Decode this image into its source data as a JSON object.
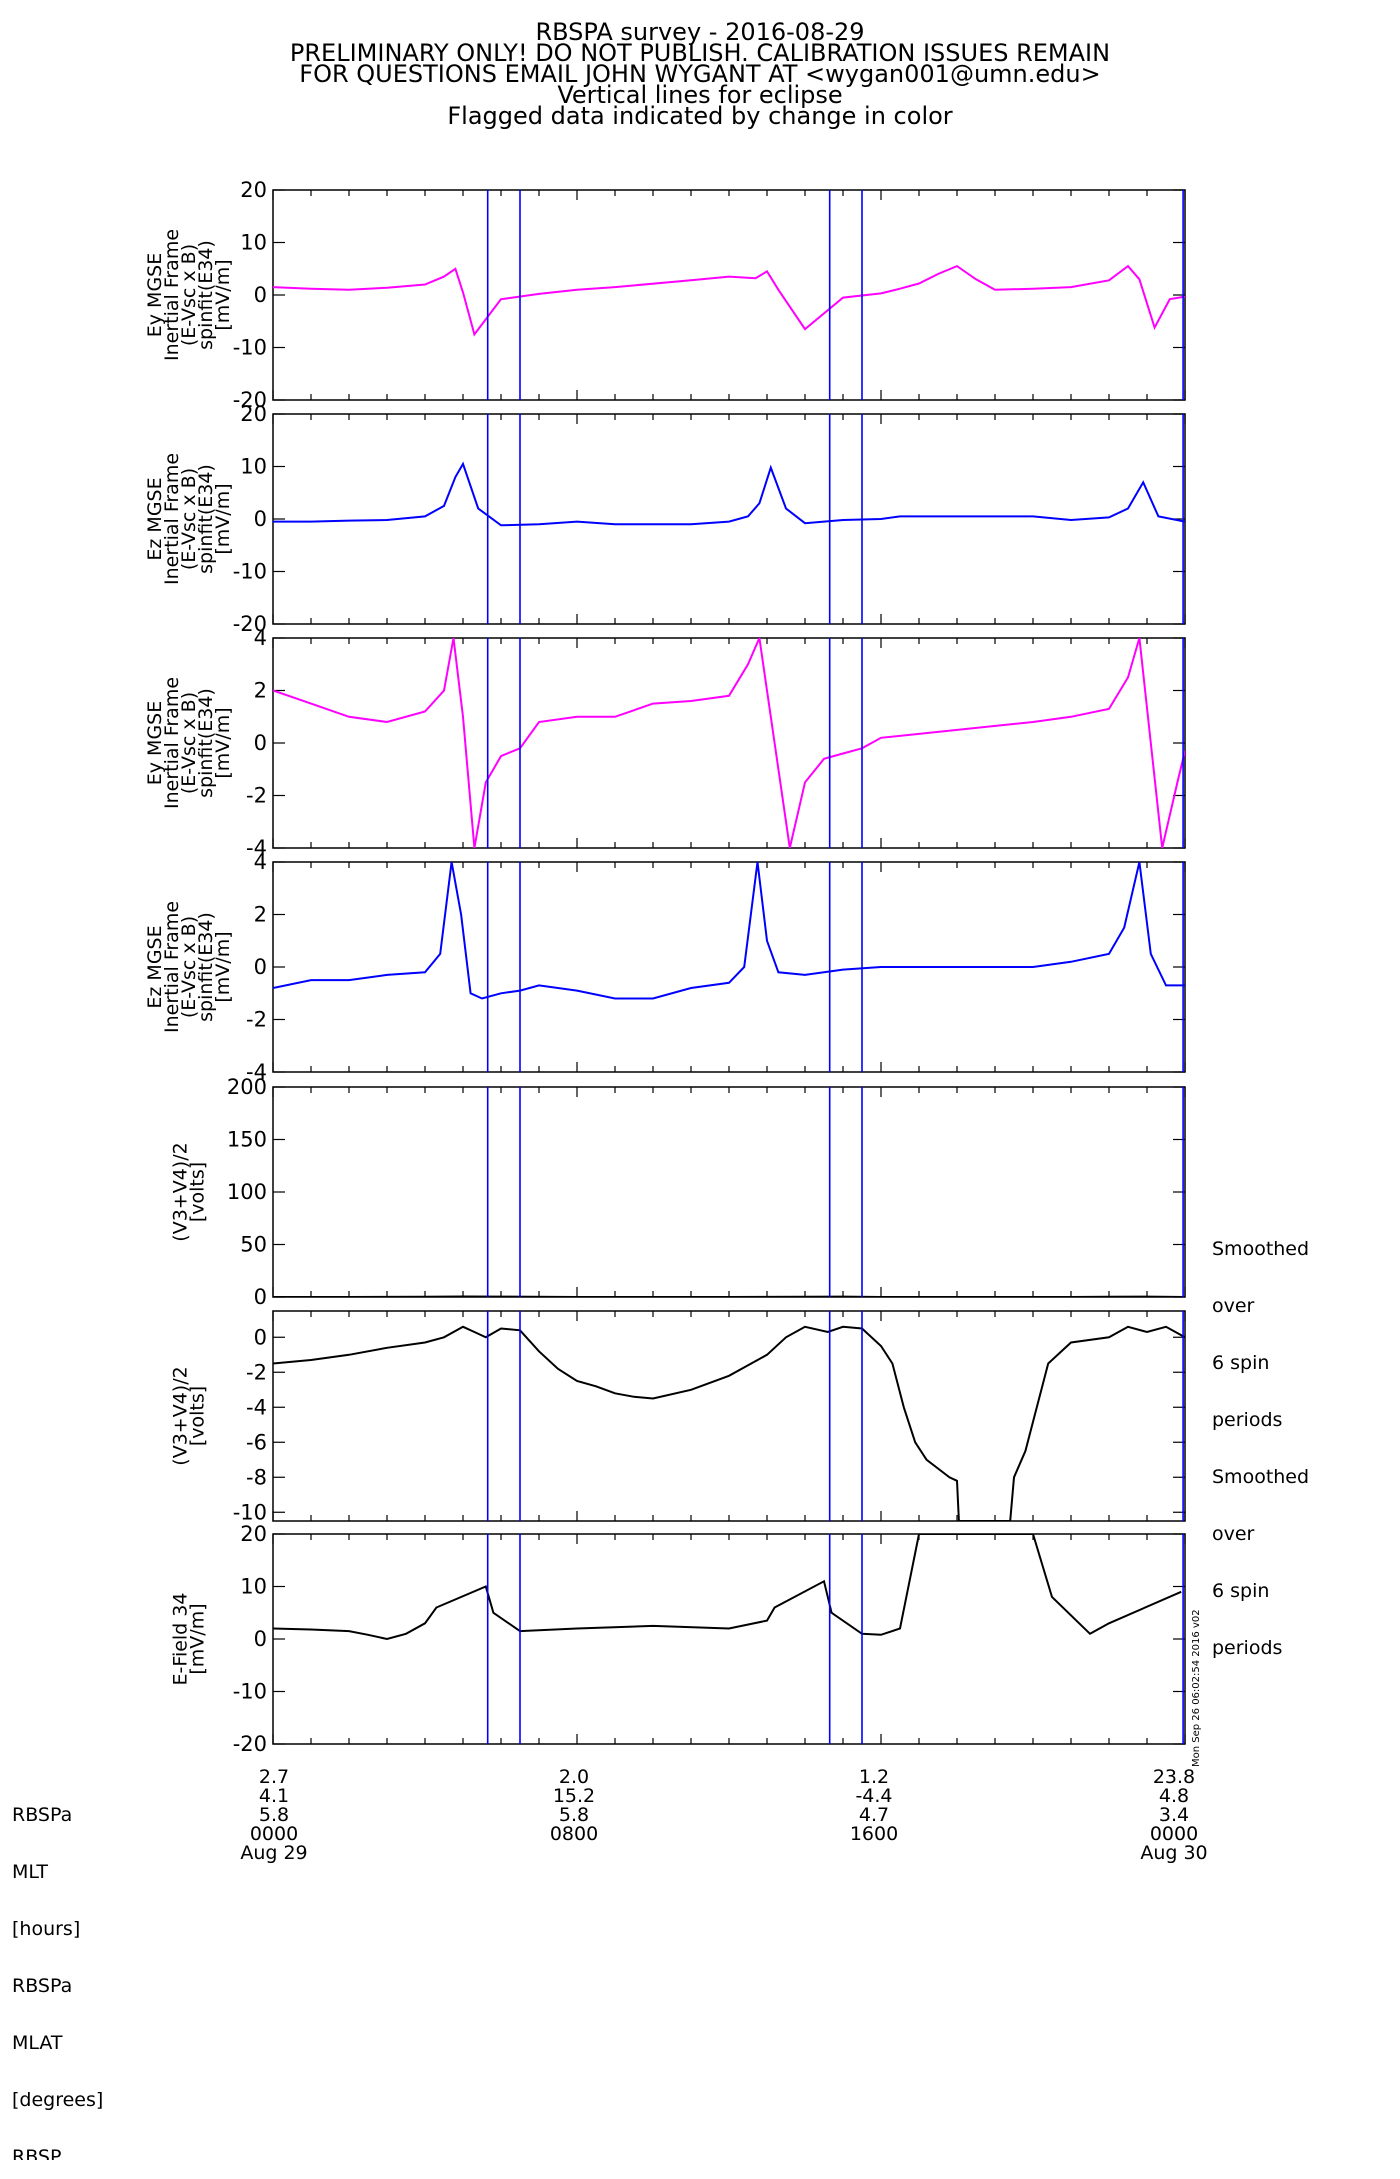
{
  "title_lines": [
    "RBSPA survey - 2016-08-29",
    "PRELIMINARY ONLY! DO NOT PUBLISH. CALIBRATION ISSUES REMAIN",
    "FOR QUESTIONS EMAIL JOHN WYGANT AT <wygan001@umn.edu>",
    "Vertical lines for eclipse",
    "Flagged data indicated by change in color"
  ],
  "colors": {
    "magenta": "#ff00ff",
    "blue": "#0000ff",
    "black": "#000000",
    "eclipse_line": "#0000ff"
  },
  "chart_data": {
    "type": "line",
    "x_range_hours": [
      0,
      24
    ],
    "eclipse_lines_hours": [
      5.65,
      6.5,
      14.65,
      15.5,
      23.95
    ],
    "panels": [
      {
        "ylabel_lines": [
          "Ey MGSE",
          "Inertial Frame",
          "(E-Vsc x B)",
          "spinfit(E34)",
          "[mV/m]"
        ],
        "ylim": [
          -20,
          20
        ],
        "yticks": [
          -20,
          -10,
          0,
          10,
          20
        ],
        "color": "#ff00ff",
        "series": [
          {
            "x": [
              0,
              1,
              2,
              3,
              4,
              4.5,
              4.8,
              5.0,
              5.3,
              6,
              7,
              8,
              9,
              11,
              12,
              12.7,
              13,
              13.3,
              14,
              15,
              16,
              16.5,
              17,
              17.5,
              18,
              18.5,
              19,
              20,
              21,
              22,
              22.5,
              22.8,
              23.2,
              23.6,
              24
            ],
            "y": [
              1.5,
              1.2,
              1.0,
              1.4,
              2.0,
              3.5,
              5.0,
              0.5,
              -7.5,
              -0.8,
              0.2,
              1.0,
              1.5,
              2.8,
              3.5,
              3.2,
              4.5,
              1.0,
              -6.5,
              -0.5,
              0.3,
              1.2,
              2.2,
              4.0,
              5.5,
              3.0,
              1.0,
              1.2,
              1.5,
              2.8,
              5.5,
              3.0,
              -6.2,
              -0.8,
              -0.3
            ]
          }
        ]
      },
      {
        "ylabel_lines": [
          "Ez MGSE",
          "Inertial Frame",
          "(E-Vsc x B)",
          "spinfit(E34)",
          "[mV/m]"
        ],
        "ylim": [
          -20,
          20
        ],
        "yticks": [
          -20,
          -10,
          0,
          10,
          20
        ],
        "color": "#0000ff",
        "series": [
          {
            "x": [
              0,
              1,
              2,
              3,
              4,
              4.5,
              4.8,
              5.0,
              5.4,
              6,
              7,
              8,
              9,
              11,
              12,
              12.5,
              12.8,
              13.1,
              13.5,
              14,
              15,
              16,
              16.5,
              20,
              21,
              22,
              22.5,
              22.9,
              23.3,
              24
            ],
            "y": [
              -0.5,
              -0.5,
              -0.3,
              -0.2,
              0.5,
              2.5,
              8.0,
              10.5,
              2.0,
              -1.2,
              -1.0,
              -0.5,
              -1.0,
              -1.0,
              -0.5,
              0.5,
              3.0,
              9.8,
              2.0,
              -0.8,
              -0.2,
              0.0,
              0.5,
              0.5,
              -0.2,
              0.3,
              2.0,
              7.0,
              0.5,
              -0.5
            ]
          }
        ]
      },
      {
        "ylabel_lines": [
          "Ey MGSE",
          "Inertial Frame",
          "(E-Vsc x B)",
          "spinfit(E34)",
          "[mV/m]"
        ],
        "ylim": [
          -4,
          4
        ],
        "yticks": [
          -4,
          -2,
          0,
          2,
          4
        ],
        "color": "#ff00ff",
        "series": [
          {
            "x": [
              0,
              1,
              2,
              3,
              4,
              4.5,
              4.75,
              5.0,
              5.3,
              5.6,
              6.0,
              6.5,
              7,
              8,
              9,
              10,
              11,
              12,
              12.5,
              12.8,
              13.2,
              13.6,
              14.0,
              14.5,
              15,
              15.5,
              16,
              20,
              21,
              22,
              22.5,
              22.8,
              23.1,
              23.4,
              23.8,
              24
            ],
            "y": [
              2.0,
              1.5,
              1.0,
              0.8,
              1.2,
              2.0,
              4.0,
              1.0,
              -4.0,
              -1.5,
              -0.5,
              -0.2,
              0.8,
              1.0,
              1.0,
              1.5,
              1.6,
              1.8,
              3.0,
              4.0,
              0.0,
              -4.0,
              -1.5,
              -0.6,
              -0.4,
              -0.2,
              0.2,
              0.8,
              1.0,
              1.3,
              2.5,
              4.0,
              0.0,
              -4.0,
              -1.5,
              -0.3
            ]
          }
        ]
      },
      {
        "ylabel_lines": [
          "Ez MGSE",
          "Inertial Frame",
          "(E-Vsc x B)",
          "spinfit(E34)",
          "[mV/m]"
        ],
        "ylim": [
          -4,
          4
        ],
        "yticks": [
          -4,
          -2,
          0,
          2,
          4
        ],
        "color": "#0000ff",
        "series": [
          {
            "x": [
              0,
              1,
              2,
              3,
              4,
              4.4,
              4.7,
              4.95,
              5.2,
              5.5,
              6,
              6.5,
              7,
              8,
              9,
              10,
              11,
              12,
              12.4,
              12.75,
              13.0,
              13.3,
              14,
              15,
              16,
              20,
              21,
              22,
              22.4,
              22.8,
              23.1,
              23.5,
              24
            ],
            "y": [
              -0.8,
              -0.5,
              -0.5,
              -0.3,
              -0.2,
              0.5,
              4.0,
              2.0,
              -1.0,
              -1.2,
              -1.0,
              -0.9,
              -0.7,
              -0.9,
              -1.2,
              -1.2,
              -0.8,
              -0.6,
              0.0,
              4.0,
              1.0,
              -0.2,
              -0.3,
              -0.1,
              0.0,
              0.0,
              0.2,
              0.5,
              1.5,
              4.0,
              0.5,
              -0.7,
              -0.7
            ]
          }
        ]
      },
      {
        "ylabel_lines": [
          "(V3+V4)/2",
          "[volts]"
        ],
        "ylim": [
          0,
          200
        ],
        "yticks": [
          0,
          50,
          100,
          150,
          200
        ],
        "color": "#000000",
        "side_note_lines": [
          "Smoothed",
          "over",
          "6 spin",
          "periods"
        ],
        "series": [
          {
            "x": [
              0,
              2,
              4,
              5,
              6,
              8,
              10,
              12,
              14,
              15,
              16,
              16.5,
              17,
              18,
              19,
              19.5,
              20,
              21,
              22,
              23,
              24
            ],
            "y": [
              -1.2,
              -0.5,
              0.2,
              0.5,
              0.4,
              -1.5,
              -2.5,
              -1.0,
              0.3,
              0.4,
              -1.5,
              -3.0,
              -6.0,
              -8.0,
              -8.0,
              -5.0,
              -2.0,
              -0.5,
              0.2,
              0.4,
              0.0
            ]
          }
        ]
      },
      {
        "ylabel_lines": [
          "(V3+V4)/2",
          "[volts]"
        ],
        "ylim": [
          -10.5,
          1.5
        ],
        "yticks": [
          -10,
          -8,
          -6,
          -4,
          -2,
          0
        ],
        "color": "#000000",
        "side_note_lines": [
          "Smoothed",
          "over",
          "6 spin",
          "periods"
        ],
        "series": [
          {
            "x": [
              0,
              1,
              2,
              3,
              4,
              4.5,
              5.0,
              5.3,
              5.6,
              6.0,
              6.5,
              7.0,
              7.5,
              8.0,
              8.5,
              9.0,
              9.5,
              10,
              11,
              12,
              13,
              13.5,
              14,
              14.6,
              15.0,
              15.5,
              16.0,
              16.3,
              16.6,
              16.9,
              17.2,
              17.5,
              17.8,
              18.0,
              18.05,
              19.4,
              19.5,
              19.8,
              20.1,
              20.4,
              21,
              22,
              22.5,
              23,
              23.5,
              24
            ],
            "y": [
              -1.5,
              -1.3,
              -1.0,
              -0.6,
              -0.3,
              0.0,
              0.6,
              0.3,
              0.0,
              0.5,
              0.4,
              -0.8,
              -1.8,
              -2.5,
              -2.8,
              -3.2,
              -3.4,
              -3.5,
              -3.0,
              -2.2,
              -1.0,
              0.0,
              0.6,
              0.3,
              0.6,
              0.5,
              -0.5,
              -1.5,
              -4.0,
              -6.0,
              -7.0,
              -7.5,
              -8.0,
              -8.2,
              -10.5,
              -10.5,
              -8.0,
              -6.5,
              -4.0,
              -1.5,
              -0.3,
              0.0,
              0.6,
              0.3,
              0.6,
              0.0
            ]
          }
        ]
      },
      {
        "ylabel_lines": [
          "E-Field 34",
          "[mV/m]"
        ],
        "ylim": [
          -20,
          20
        ],
        "yticks": [
          -20,
          -10,
          0,
          10,
          20
        ],
        "color": "#000000",
        "series": [
          {
            "x": [
              0,
              1,
              2,
              2.5,
              3,
              3.5,
              4,
              4.3,
              5.6,
              5.8,
              6.5,
              8,
              10,
              12,
              13,
              13.2,
              14.5,
              14.7,
              15.5,
              16,
              16.5,
              17,
              20,
              20.5,
              21.5,
              22,
              23.9
            ],
            "y": [
              2.0,
              1.8,
              1.5,
              0.8,
              0.0,
              1.0,
              3.0,
              6.0,
              10.0,
              5.0,
              1.5,
              2.0,
              2.5,
              2.0,
              3.5,
              6.0,
              11.0,
              5.0,
              1.0,
              0.8,
              2.0,
              20.0,
              20.0,
              8.0,
              1.0,
              3.0,
              9.0
            ]
          }
        ]
      }
    ],
    "x_tick_labels": [
      "2.7\n4.1\n5.8\n0000\nAug 29",
      "2.0\n15.2\n5.8\n0800",
      "1.2\n-4.4\n4.7\n1600",
      "23.8\n4.8\n3.4\n0000\nAug 30"
    ],
    "x_tick_hours": [
      0,
      8,
      16,
      24
    ],
    "row_labels": [
      "RBSPa",
      "MLT",
      "[hours]",
      "RBSPa",
      "MLAT",
      "[degrees]",
      "RBSP"
    ]
  },
  "footer": {
    "col1": [
      "2.7",
      "4.1",
      "5.8",
      "0000",
      "Aug 29"
    ],
    "col2": [
      "2.0",
      "15.2",
      "5.8",
      "0800"
    ],
    "col3": [
      "1.2",
      "-4.4",
      "4.7",
      "1600"
    ],
    "col4": [
      "23.8",
      "4.8",
      "3.4",
      "0000",
      "Aug 30"
    ],
    "left_labels": [
      "RBSPa",
      "MLT",
      "[hours]",
      "RBSPa",
      "MLAT",
      "[degrees]",
      "RBSP"
    ]
  },
  "stamp": "Mon Sep 26 06:02:54 2016 v02"
}
